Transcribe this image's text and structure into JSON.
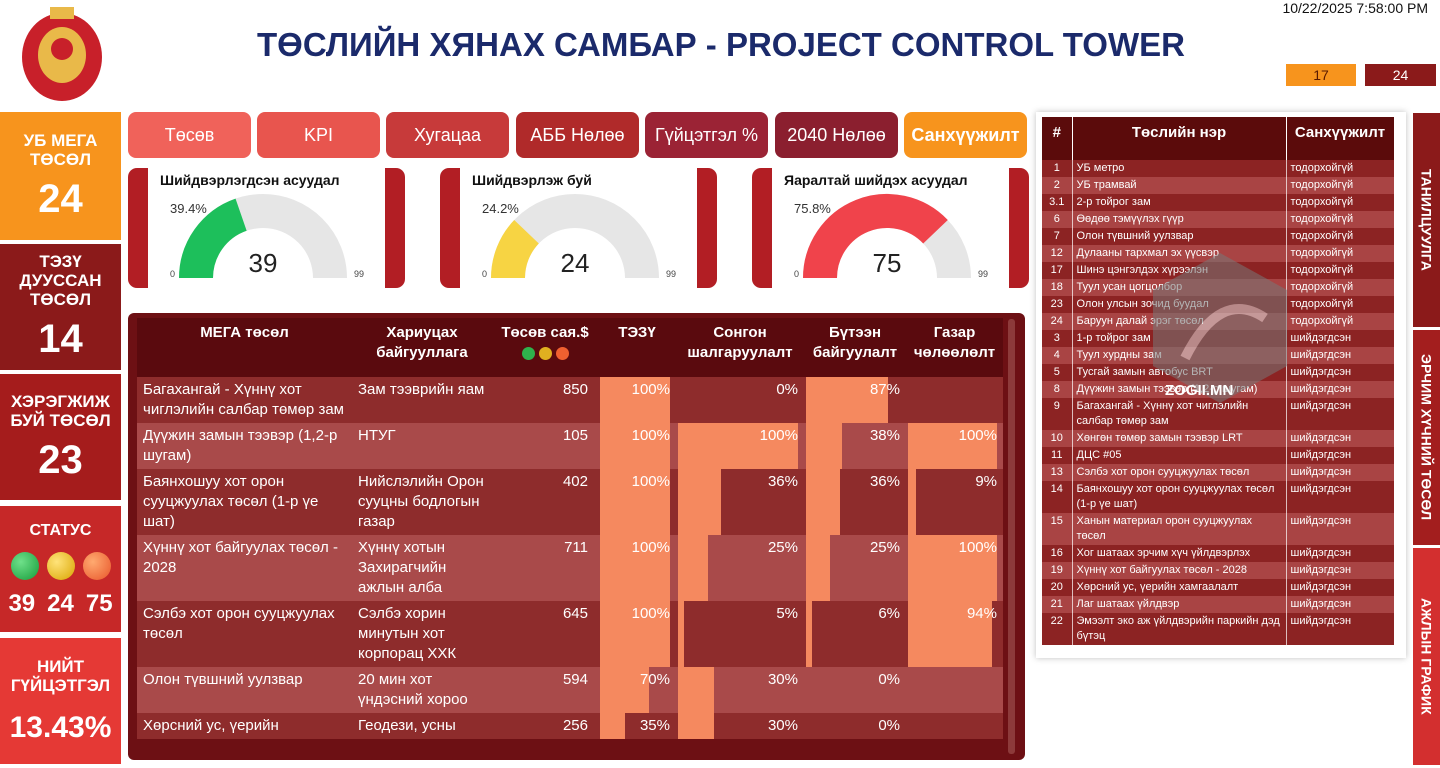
{
  "header": {
    "title": "ТӨСЛИЙН ХЯНАХ САМБАР - PROJECT CONTROL TOWER",
    "datetime": "10/22/2025 7:58:00 PM",
    "badges": [
      17,
      24
    ]
  },
  "cards": [
    {
      "label": "УБ МЕГА ТӨСӨЛ",
      "value": 24
    },
    {
      "label": "ТЭЗҮ ДУУССАН ТӨСӨЛ",
      "value": 14
    },
    {
      "label": "ХЭРЭГЖИЖ БУЙ ТӨСӨЛ",
      "value": 23
    }
  ],
  "status": {
    "label": "СТАТУС",
    "values": [
      39,
      24,
      75
    ]
  },
  "total": {
    "label": "НИЙТ ГҮЙЦЭТГЭЛ",
    "value": "13.43%"
  },
  "tabs": [
    "Төсөв",
    "KPI",
    "Хугацаа",
    "АББ Нөлөө",
    "Гүйцэтгэл %",
    "2040 Нөлөө",
    "Санхүүжилт"
  ],
  "gauges": [
    {
      "title": "Шийдвэрлэгдсэн асуудал",
      "percent": "39.4%",
      "value": 39,
      "min": 0,
      "max": 99,
      "color": "#1dbf5b"
    },
    {
      "title": "Шийдвэрлэж буй",
      "percent": "24.2%",
      "value": 24,
      "min": 0,
      "max": 99,
      "color": "#f7d443"
    },
    {
      "title": "Яаралтай шийдэх асуудал",
      "percent": "75.8%",
      "value": 75,
      "min": 0,
      "max": 99,
      "color": "#f0434b"
    }
  ],
  "main_table": {
    "columns": [
      "МЕГА төсөл",
      "Хариуцах байгууллага",
      "Төсөв сая.$",
      "ТЭЗҮ",
      "Сонгон шалгаруулалт",
      "Бүтээн байгуулалт",
      "Газар чөлөөлөлт"
    ],
    "rows": [
      [
        "Багахангай - Хүннү хот чиглэлийн салбар төмөр зам",
        "Зам тээврийн яам",
        850,
        {
          "value": 100,
          "label": "100%"
        },
        {
          "value": 0,
          "label": "0%"
        },
        {
          "value": 87,
          "label": "87%"
        },
        null
      ],
      [
        "Дүүжин замын тээвэр (1,2-р шугам)",
        "НТУГ",
        105,
        {
          "value": 100,
          "label": "100%"
        },
        {
          "value": 100,
          "label": "100%"
        },
        {
          "value": 38,
          "label": "38%"
        },
        {
          "value": 100,
          "label": "100%"
        }
      ],
      [
        "Баянхошуу хот орон сууцжуулах төсөл (1-р үе шат)",
        "Нийслэлийн Орон сууцны бодлогын газар",
        402,
        {
          "value": 100,
          "label": "100%"
        },
        {
          "value": 36,
          "label": "36%"
        },
        {
          "value": 36,
          "label": "36%"
        },
        {
          "value": 9,
          "label": "9%"
        }
      ],
      [
        "Хүннү хот байгуулах төсөл - 2028",
        "Хүннү хотын Захирагчийн ажлын алба",
        711,
        {
          "value": 100,
          "label": "100%"
        },
        {
          "value": 25,
          "label": "25%"
        },
        {
          "value": 25,
          "label": "25%"
        },
        {
          "value": 100,
          "label": "100%"
        }
      ],
      [
        "Сэлбэ хот орон сууцжуулах төсөл",
        "Сэлбэ хорин минутын хот корпорац ХХК",
        645,
        {
          "value": 100,
          "label": "100%"
        },
        {
          "value": 5,
          "label": "5%"
        },
        {
          "value": 6,
          "label": "6%"
        },
        {
          "value": 94,
          "label": "94%"
        }
      ],
      [
        "Олон түвшний уулзвар",
        "20 мин хот үндэсний хороо",
        594,
        {
          "value": 70,
          "label": "70%"
        },
        {
          "value": 30,
          "label": "30%"
        },
        {
          "value": 0,
          "label": "0%"
        },
        null
      ],
      [
        "Хөрсний ус, үерийн",
        "Геодези, усны",
        256,
        {
          "value": 35,
          "label": "35%"
        },
        {
          "value": 30,
          "label": "30%"
        },
        {
          "value": 0,
          "label": "0%"
        },
        null
      ]
    ]
  },
  "project_list": {
    "columns": [
      "#",
      "Төслийн нэр",
      "Санхүүжилт"
    ],
    "rows": [
      [
        "1",
        "УБ метро",
        "тодорхойгүй"
      ],
      [
        "2",
        "УБ трамвай",
        "тодорхойгүй"
      ],
      [
        "3.1",
        "2-р тойрог зам",
        "тодорхойгүй"
      ],
      [
        "6",
        "Өөдөө тэмүүлэх гүүр",
        "тодорхойгүй"
      ],
      [
        "7",
        "Олон түвшний уулзвар",
        "тодорхойгүй"
      ],
      [
        "12",
        "Дулааны тархмал эх үүсвэр",
        "тодорхойгүй"
      ],
      [
        "17",
        "Шинэ цэнгэлдэх хүрээлэн",
        "тодорхойгүй"
      ],
      [
        "18",
        "Туул усан цогцолбор",
        "тодорхойгүй"
      ],
      [
        "23",
        "Олон улсын зочид буудал",
        "тодорхойгүй"
      ],
      [
        "24",
        "Баруун далай эрэг төсөл",
        "тодорхойгүй"
      ],
      [
        "3",
        "1-р тойрог зам",
        "шийдэгдсэн"
      ],
      [
        "4",
        "Туул хурдны зам",
        "шийдэгдсэн"
      ],
      [
        "5",
        "Тусгай замын автобус BRT",
        "шийдэгдсэн"
      ],
      [
        "8",
        "Дүүжин замын тээвэр (1,2-р шугам)",
        "шийдэгдсэн"
      ],
      [
        "9",
        "Багахангай - Хүннү хот чиглэлийн салбар төмөр зам",
        "шийдэгдсэн"
      ],
      [
        "10",
        "Хөнгөн төмөр замын тээвэр LRT",
        "шийдэгдсэн"
      ],
      [
        "11",
        "ДЦС #05",
        "шийдэгдсэн"
      ],
      [
        "13",
        "Сэлбэ хот орон сууцжуулах төсөл",
        "шийдэгдсэн"
      ],
      [
        "14",
        "Баянхошуу хот орон сууцжуулах төсөл (1-р үе шат)",
        "шийдэгдсэн"
      ],
      [
        "15",
        "Ханын материал орон сууцжуулах төсөл",
        "шийдэгдсэн"
      ],
      [
        "16",
        "Хог шатаах эрчим хүч үйлдвэрлэх",
        "шийдэгдсэн"
      ],
      [
        "19",
        "Хүннү хот байгуулах төсөл - 2028",
        "шийдэгдсэн"
      ],
      [
        "20",
        "Хөрсний ус, үерийн хамгаалалт",
        "шийдэгдсэн"
      ],
      [
        "21",
        "Лаг шатаах үйлдвэр",
        "шийдэгдсэн"
      ],
      [
        "22",
        "Эмээлт эко аж үйлдвэрийн паркийн дэд бүтэц",
        "шийдэгдсэн"
      ]
    ]
  },
  "side_tabs": [
    "ТАНИЛЦУУЛГА",
    "ЭРЧИМ ХҮЧНИЙ ТӨСӨЛ",
    "АЖЛЫН ГРАФИК"
  ],
  "watermark": "ZOGII.MN"
}
